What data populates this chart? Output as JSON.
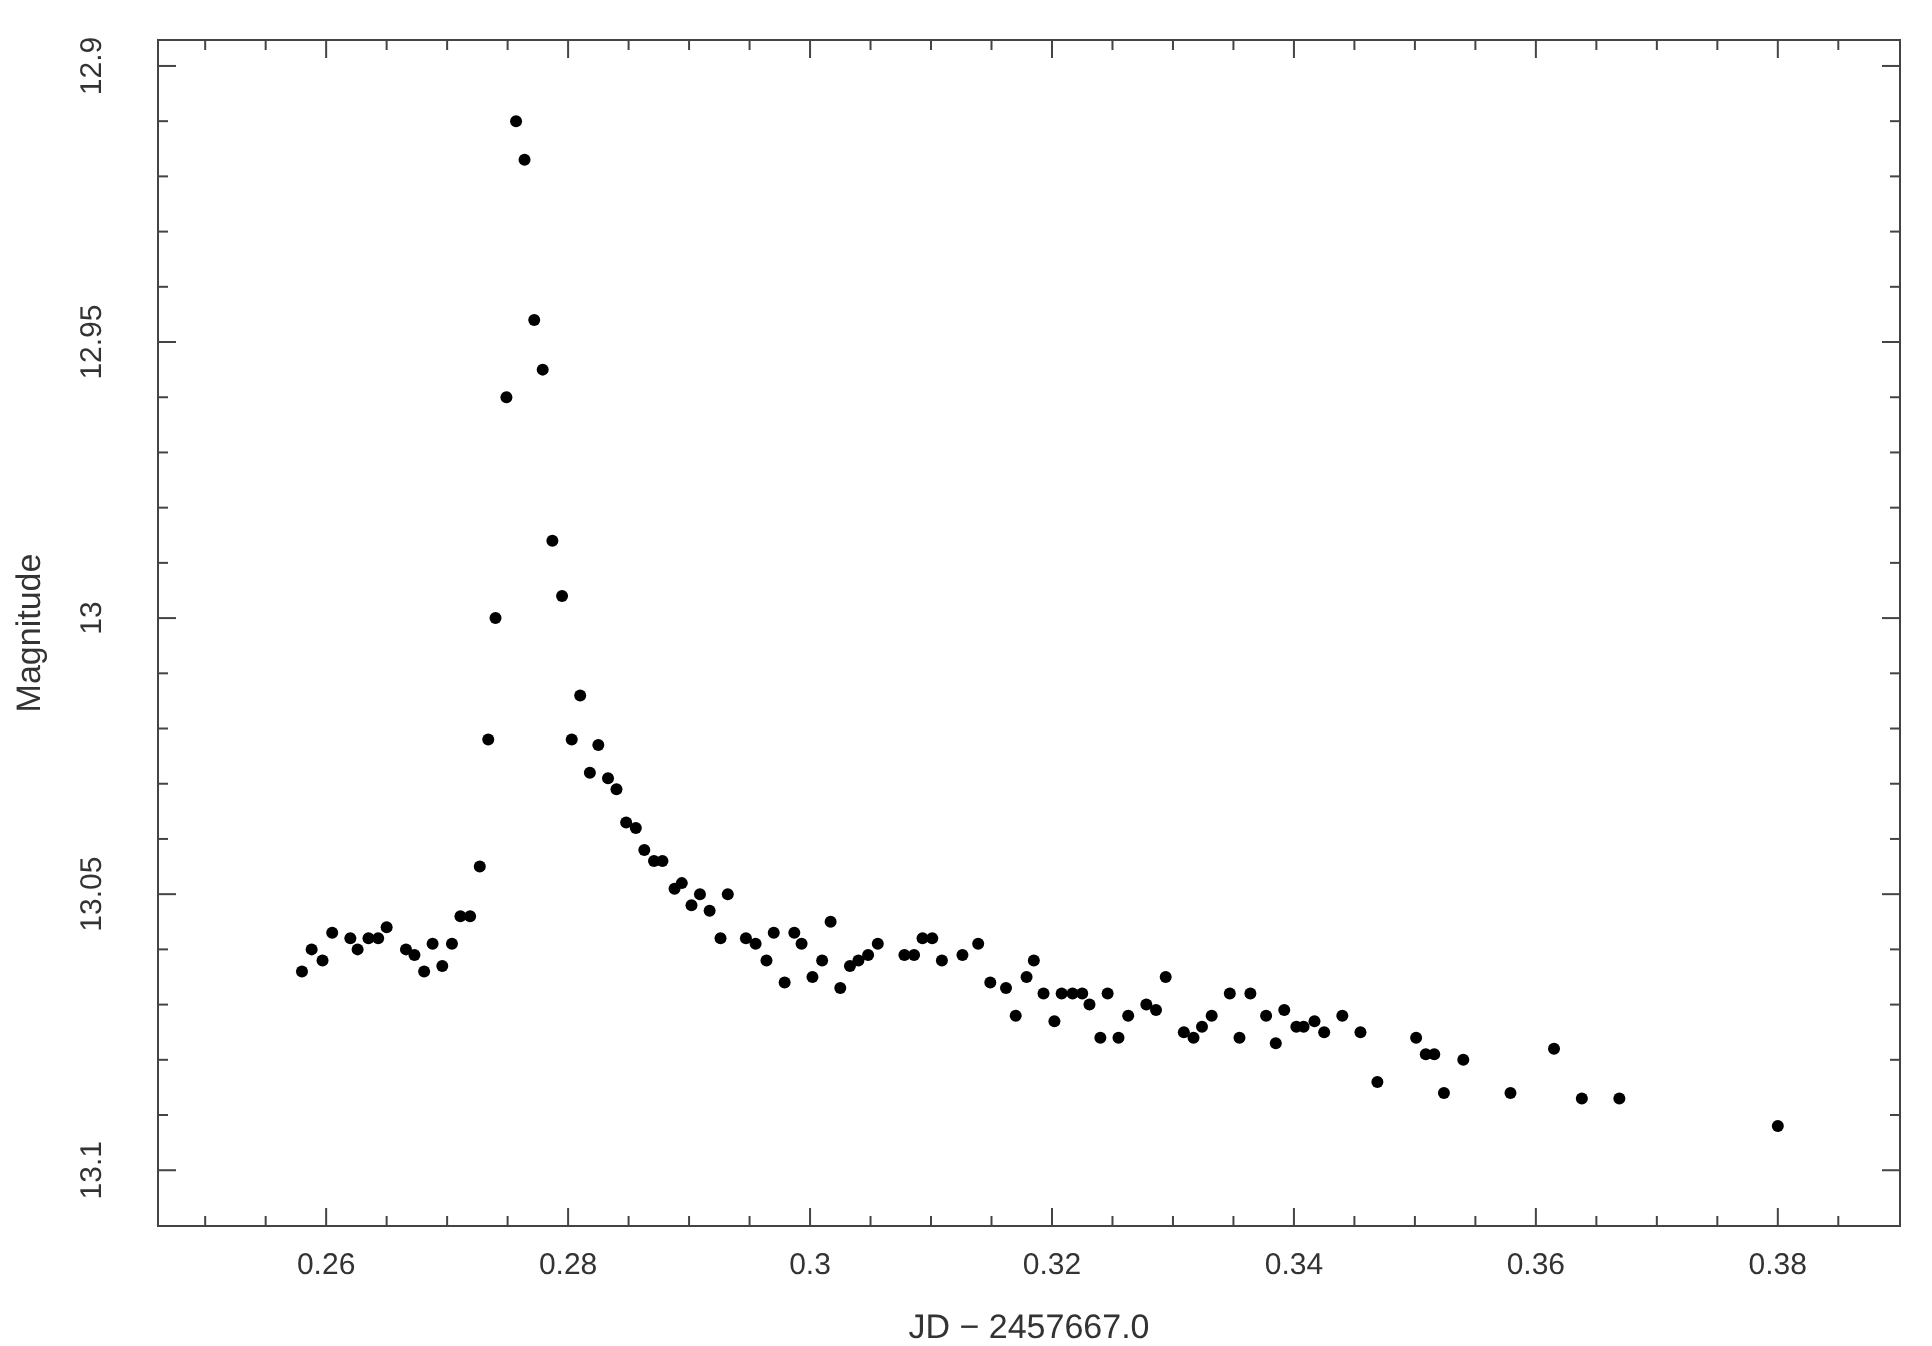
{
  "chart_data": {
    "type": "scatter",
    "xlabel": "JD − 2457667.0",
    "ylabel": "Magnitude",
    "marker": "circle",
    "xlim": [
      0.2461,
      0.3901
    ],
    "ylim": [
      13.1101,
      12.8953
    ],
    "xticks": [
      {
        "value": 0.25,
        "label": null
      },
      {
        "value": 0.255,
        "label": null
      },
      0.26,
      {
        "value": 0.265,
        "label": null
      },
      {
        "value": 0.27,
        "label": null
      },
      {
        "value": 0.275,
        "label": null
      },
      0.28,
      {
        "value": 0.285,
        "label": null
      },
      {
        "value": 0.29,
        "label": null
      },
      {
        "value": 0.295,
        "label": null
      },
      {
        "value": 0.3,
        "label": "0.3"
      },
      {
        "value": 0.305,
        "label": null
      },
      {
        "value": 0.31,
        "label": null
      },
      {
        "value": 0.315,
        "label": null
      },
      0.32,
      {
        "value": 0.325,
        "label": null
      },
      {
        "value": 0.33,
        "label": null
      },
      {
        "value": 0.335,
        "label": null
      },
      0.34,
      {
        "value": 0.345,
        "label": null
      },
      {
        "value": 0.35,
        "label": null
      },
      {
        "value": 0.355,
        "label": null
      },
      0.36,
      {
        "value": 0.365,
        "label": null
      },
      {
        "value": 0.37,
        "label": null
      },
      {
        "value": 0.375,
        "label": null
      },
      0.38,
      {
        "value": 0.385,
        "label": null
      }
    ],
    "yticks": [
      12.9,
      {
        "value": 12.91,
        "label": null
      },
      {
        "value": 12.92,
        "label": null
      },
      {
        "value": 12.93,
        "label": null
      },
      {
        "value": 12.94,
        "label": null
      },
      12.95,
      {
        "value": 12.96,
        "label": null
      },
      {
        "value": 12.97,
        "label": null
      },
      {
        "value": 12.98,
        "label": null
      },
      {
        "value": 12.99,
        "label": null
      },
      13,
      {
        "value": 13.01,
        "label": null
      },
      {
        "value": 13.02,
        "label": null
      },
      {
        "value": 13.03,
        "label": null
      },
      {
        "value": 13.04,
        "label": null
      },
      13.05,
      {
        "value": 13.06,
        "label": null
      },
      {
        "value": 13.07,
        "label": null
      },
      {
        "value": 13.08,
        "label": null
      },
      {
        "value": 13.09,
        "label": null
      },
      13.1
    ],
    "series": [
      {
        "color": "#000000",
        "x": [
          0.258,
          0.2588,
          0.2597,
          0.2605,
          0.262,
          0.2626,
          0.2635,
          0.2643,
          0.265,
          0.2666,
          0.2673,
          0.2681,
          0.2688,
          0.2696,
          0.2704,
          0.2711,
          0.2719,
          0.2727,
          0.2734,
          0.274,
          0.2749,
          0.2757,
          0.2764,
          0.2772,
          0.2779,
          0.2787,
          0.2795,
          0.2803,
          0.281,
          0.2818,
          0.2825,
          0.2833,
          0.284,
          0.2848,
          0.2856,
          0.2863,
          0.2871,
          0.2878,
          0.2888,
          0.2894,
          0.2902,
          0.2909,
          0.2917,
          0.2926,
          0.2932,
          0.2947,
          0.2955,
          0.2964,
          0.297,
          0.2979,
          0.2987,
          0.2993,
          0.3002,
          0.301,
          0.3017,
          0.3025,
          0.3033,
          0.304,
          0.3048,
          0.3056,
          0.3078,
          0.3086,
          0.3093,
          0.3101,
          0.3109,
          0.3126,
          0.3139,
          0.3149,
          0.3162,
          0.317,
          0.3179,
          0.3185,
          0.3193,
          0.3202,
          0.3208,
          0.3217,
          0.3225,
          0.3231,
          0.324,
          0.3246,
          0.3255,
          0.3263,
          0.3278,
          0.3286,
          0.3294,
          0.3309,
          0.3317,
          0.3324,
          0.3332,
          0.3347,
          0.3355,
          0.3364,
          0.3377,
          0.3385,
          0.3392,
          0.3402,
          0.3408,
          0.3417,
          0.3425,
          0.344,
          0.3455,
          0.3469,
          0.3501,
          0.3509,
          0.3516,
          0.3524,
          0.354,
          0.3579,
          0.3615,
          0.3638,
          0.3669,
          0.38
        ],
        "values": [
          13.064,
          13.06,
          13.062,
          13.057,
          13.058,
          13.06,
          13.058,
          13.058,
          13.056,
          13.06,
          13.061,
          13.064,
          13.059,
          13.063,
          13.059,
          13.054,
          13.054,
          13.045,
          13.022,
          13.0,
          12.96,
          12.91,
          12.917,
          12.946,
          12.955,
          12.986,
          12.996,
          13.022,
          13.014,
          13.028,
          13.023,
          13.029,
          13.031,
          13.037,
          13.038,
          13.042,
          13.044,
          13.044,
          13.049,
          13.048,
          13.052,
          13.05,
          13.053,
          13.058,
          13.05,
          13.058,
          13.059,
          13.062,
          13.057,
          13.066,
          13.057,
          13.059,
          13.065,
          13.062,
          13.055,
          13.067,
          13.063,
          13.062,
          13.061,
          13.059,
          13.061,
          13.061,
          13.058,
          13.058,
          13.062,
          13.061,
          13.059,
          13.066,
          13.067,
          13.072,
          13.065,
          13.062,
          13.068,
          13.073,
          13.068,
          13.068,
          13.068,
          13.07,
          13.076,
          13.068,
          13.076,
          13.072,
          13.07,
          13.071,
          13.065,
          13.075,
          13.076,
          13.074,
          13.072,
          13.068,
          13.076,
          13.068,
          13.072,
          13.077,
          13.071,
          13.074,
          13.074,
          13.073,
          13.075,
          13.072,
          13.075,
          13.084,
          13.076,
          13.079,
          13.079,
          13.086,
          13.08,
          13.086,
          13.078,
          13.087,
          13.087,
          13.092
        ]
      }
    ]
  }
}
